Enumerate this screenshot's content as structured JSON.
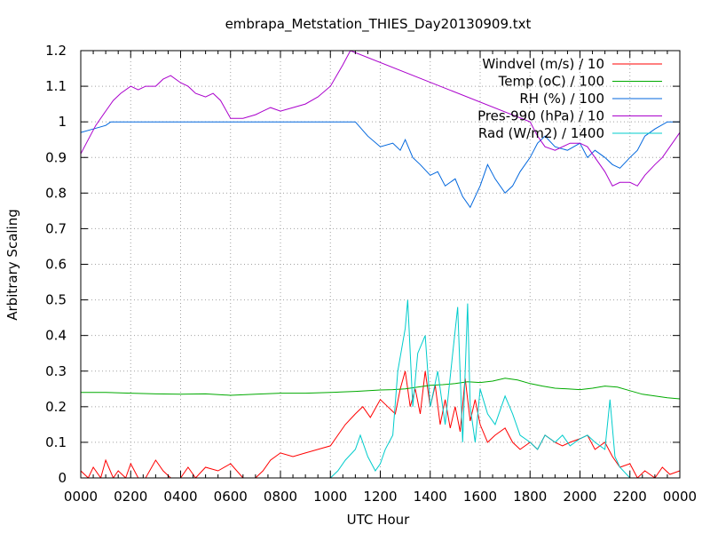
{
  "chart_data": {
    "type": "line",
    "title": "embrapa_Metstation_THIES_Day20130909.txt",
    "xlabel": "UTC Hour",
    "ylabel": "Arbitrary Scaling",
    "xlim": [
      0,
      24
    ],
    "ylim": [
      0,
      1.2
    ],
    "x_ticks": [
      {
        "v": 0,
        "label": "0000"
      },
      {
        "v": 2,
        "label": "0200"
      },
      {
        "v": 4,
        "label": "0400"
      },
      {
        "v": 6,
        "label": "0600"
      },
      {
        "v": 8,
        "label": "0800"
      },
      {
        "v": 10,
        "label": "1000"
      },
      {
        "v": 12,
        "label": "1200"
      },
      {
        "v": 14,
        "label": "1400"
      },
      {
        "v": 16,
        "label": "1600"
      },
      {
        "v": 18,
        "label": "1800"
      },
      {
        "v": 20,
        "label": "2000"
      },
      {
        "v": 22,
        "label": "2200"
      },
      {
        "v": 24,
        "label": "0000"
      }
    ],
    "x_minor_step": 0.5,
    "y_ticks": [
      {
        "v": 0,
        "label": "0"
      },
      {
        "v": 0.1,
        "label": "0.1"
      },
      {
        "v": 0.2,
        "label": "0.2"
      },
      {
        "v": 0.3,
        "label": "0.3"
      },
      {
        "v": 0.4,
        "label": "0.4"
      },
      {
        "v": 0.5,
        "label": "0.5"
      },
      {
        "v": 0.6,
        "label": "0.6"
      },
      {
        "v": 0.7,
        "label": "0.7"
      },
      {
        "v": 0.8,
        "label": "0.8"
      },
      {
        "v": 0.9,
        "label": "0.9"
      },
      {
        "v": 1,
        "label": "1"
      },
      {
        "v": 1.1,
        "label": "1.1"
      },
      {
        "v": 1.2,
        "label": "1.2"
      }
    ],
    "grid": true,
    "legend_position": "top-right",
    "series": [
      {
        "name": "Windvel (m/s) / 10",
        "color": "#ff0000",
        "x": [
          0,
          0.3,
          0.5,
          0.8,
          1.0,
          1.3,
          1.5,
          1.8,
          2.0,
          2.3,
          2.6,
          3.0,
          3.3,
          3.6,
          4.0,
          4.3,
          4.6,
          5.0,
          5.5,
          6.0,
          6.5,
          7.0,
          7.3,
          7.6,
          8.0,
          8.5,
          9.0,
          9.5,
          10.0,
          10.3,
          10.6,
          11.0,
          11.3,
          11.6,
          12.0,
          12.3,
          12.6,
          12.8,
          13.0,
          13.2,
          13.4,
          13.6,
          13.8,
          14.0,
          14.2,
          14.4,
          14.6,
          14.8,
          15.0,
          15.2,
          15.4,
          15.6,
          15.8,
          16.0,
          16.3,
          16.6,
          17.0,
          17.3,
          17.6,
          18.0,
          18.3,
          18.6,
          19.0,
          19.3,
          19.6,
          20.0,
          20.3,
          20.6,
          21.0,
          21.3,
          21.6,
          22.0,
          22.3,
          22.6,
          23.0,
          23.3,
          23.6,
          24.0
        ],
        "y": [
          0.02,
          0.0,
          0.03,
          0.0,
          0.05,
          0.0,
          0.02,
          0.0,
          0.04,
          0.0,
          0.0,
          0.05,
          0.02,
          0.0,
          0.0,
          0.03,
          0.0,
          0.03,
          0.02,
          0.04,
          0.0,
          0.0,
          0.02,
          0.05,
          0.07,
          0.06,
          0.07,
          0.08,
          0.09,
          0.12,
          0.15,
          0.18,
          0.2,
          0.17,
          0.22,
          0.2,
          0.18,
          0.25,
          0.3,
          0.2,
          0.25,
          0.18,
          0.3,
          0.2,
          0.26,
          0.15,
          0.22,
          0.14,
          0.2,
          0.13,
          0.28,
          0.16,
          0.22,
          0.15,
          0.1,
          0.12,
          0.14,
          0.1,
          0.08,
          0.1,
          0.08,
          0.12,
          0.1,
          0.09,
          0.1,
          0.11,
          0.12,
          0.08,
          0.1,
          0.06,
          0.03,
          0.04,
          0.0,
          0.02,
          0.0,
          0.03,
          0.01,
          0.02
        ]
      },
      {
        "name": "Temp (oC) / 100",
        "color": "#00aa00",
        "x": [
          0,
          1,
          2,
          3,
          4,
          5,
          6,
          7,
          8,
          9,
          10,
          11,
          12,
          12.5,
          13,
          13.5,
          14,
          14.5,
          15,
          15.5,
          16,
          16.5,
          17,
          17.5,
          18,
          18.5,
          19,
          19.5,
          20,
          20.5,
          21,
          21.5,
          22,
          22.5,
          23,
          23.5,
          24
        ],
        "y": [
          0.24,
          0.24,
          0.238,
          0.236,
          0.235,
          0.236,
          0.232,
          0.235,
          0.238,
          0.238,
          0.24,
          0.243,
          0.247,
          0.248,
          0.25,
          0.255,
          0.26,
          0.262,
          0.265,
          0.27,
          0.268,
          0.272,
          0.28,
          0.275,
          0.265,
          0.258,
          0.252,
          0.25,
          0.248,
          0.252,
          0.258,
          0.255,
          0.245,
          0.235,
          0.23,
          0.225,
          0.222
        ]
      },
      {
        "name": "RH (%) / 100",
        "color": "#0066dd",
        "x": [
          0,
          0.5,
          1.0,
          1.2,
          2,
          4,
          6,
          8,
          10,
          10.5,
          11.0,
          11.5,
          12.0,
          12.5,
          12.8,
          13.0,
          13.3,
          13.6,
          14.0,
          14.3,
          14.6,
          15.0,
          15.3,
          15.6,
          16.0,
          16.3,
          16.6,
          17.0,
          17.3,
          17.6,
          18.0,
          18.3,
          18.6,
          19.0,
          19.5,
          20.0,
          20.3,
          20.6,
          21.0,
          21.3,
          21.6,
          22.0,
          22.3,
          22.6,
          23.0,
          23.5,
          24.0
        ],
        "y": [
          0.97,
          0.98,
          0.99,
          1.0,
          1.0,
          1.0,
          1.0,
          1.0,
          1.0,
          1.0,
          1.0,
          0.96,
          0.93,
          0.94,
          0.92,
          0.95,
          0.9,
          0.88,
          0.85,
          0.86,
          0.82,
          0.84,
          0.79,
          0.76,
          0.82,
          0.88,
          0.84,
          0.8,
          0.82,
          0.86,
          0.9,
          0.94,
          0.96,
          0.93,
          0.92,
          0.94,
          0.9,
          0.92,
          0.9,
          0.88,
          0.87,
          0.9,
          0.92,
          0.96,
          0.98,
          1.0,
          1.0
        ]
      },
      {
        "name": "Pres-990 (hPa) / 10",
        "color": "#aa00cc",
        "x": [
          0,
          0.3,
          0.6,
          1.0,
          1.3,
          1.6,
          2.0,
          2.3,
          2.6,
          3.0,
          3.3,
          3.6,
          4.0,
          4.3,
          4.6,
          5.0,
          5.3,
          5.6,
          6.0,
          6.5,
          7.0,
          7.3,
          7.6,
          8.0,
          8.5,
          9.0,
          9.5,
          10.0,
          10.5,
          10.8,
          18.0,
          18.3,
          18.6,
          19.0,
          19.3,
          19.6,
          20.0,
          20.3,
          20.6,
          21.0,
          21.3,
          21.6,
          22.0,
          22.3,
          22.6,
          23.0,
          23.3,
          23.6,
          24.0
        ],
        "y": [
          0.91,
          0.95,
          0.99,
          1.03,
          1.06,
          1.08,
          1.1,
          1.09,
          1.1,
          1.1,
          1.12,
          1.13,
          1.11,
          1.1,
          1.08,
          1.07,
          1.08,
          1.06,
          1.01,
          1.01,
          1.02,
          1.03,
          1.04,
          1.03,
          1.04,
          1.05,
          1.07,
          1.1,
          1.16,
          1.2,
          1.0,
          0.96,
          0.93,
          0.92,
          0.93,
          0.94,
          0.94,
          0.93,
          0.9,
          0.86,
          0.82,
          0.83,
          0.83,
          0.82,
          0.85,
          0.88,
          0.9,
          0.93,
          0.97
        ]
      },
      {
        "name": "Rad (W/m2) / 1400",
        "color": "#00cccc",
        "x": [
          0,
          2,
          4,
          6,
          8,
          9.5,
          10.0,
          10.3,
          10.6,
          11.0,
          11.2,
          11.5,
          11.8,
          12.0,
          12.2,
          12.5,
          12.7,
          13.0,
          13.1,
          13.3,
          13.5,
          13.8,
          14.0,
          14.3,
          14.6,
          14.9,
          15.1,
          15.3,
          15.5,
          15.6,
          15.8,
          16.0,
          16.3,
          16.6,
          17.0,
          17.3,
          17.6,
          18.0,
          18.3,
          18.6,
          19.0,
          19.3,
          19.6,
          20.0,
          20.3,
          20.6,
          21.0,
          21.2,
          21.4,
          21.6,
          22.0,
          22.5,
          23.0,
          24.0
        ],
        "y": [
          0.0,
          0.0,
          0.0,
          0.0,
          0.0,
          0.0,
          0.0,
          0.02,
          0.05,
          0.08,
          0.12,
          0.06,
          0.02,
          0.04,
          0.08,
          0.12,
          0.3,
          0.42,
          0.5,
          0.2,
          0.35,
          0.4,
          0.2,
          0.3,
          0.15,
          0.35,
          0.48,
          0.1,
          0.49,
          0.2,
          0.1,
          0.25,
          0.18,
          0.15,
          0.23,
          0.18,
          0.12,
          0.1,
          0.08,
          0.12,
          0.1,
          0.12,
          0.09,
          0.11,
          0.12,
          0.1,
          0.08,
          0.22,
          0.06,
          0.03,
          0.0,
          0.0,
          0.0,
          0.0
        ]
      }
    ]
  }
}
